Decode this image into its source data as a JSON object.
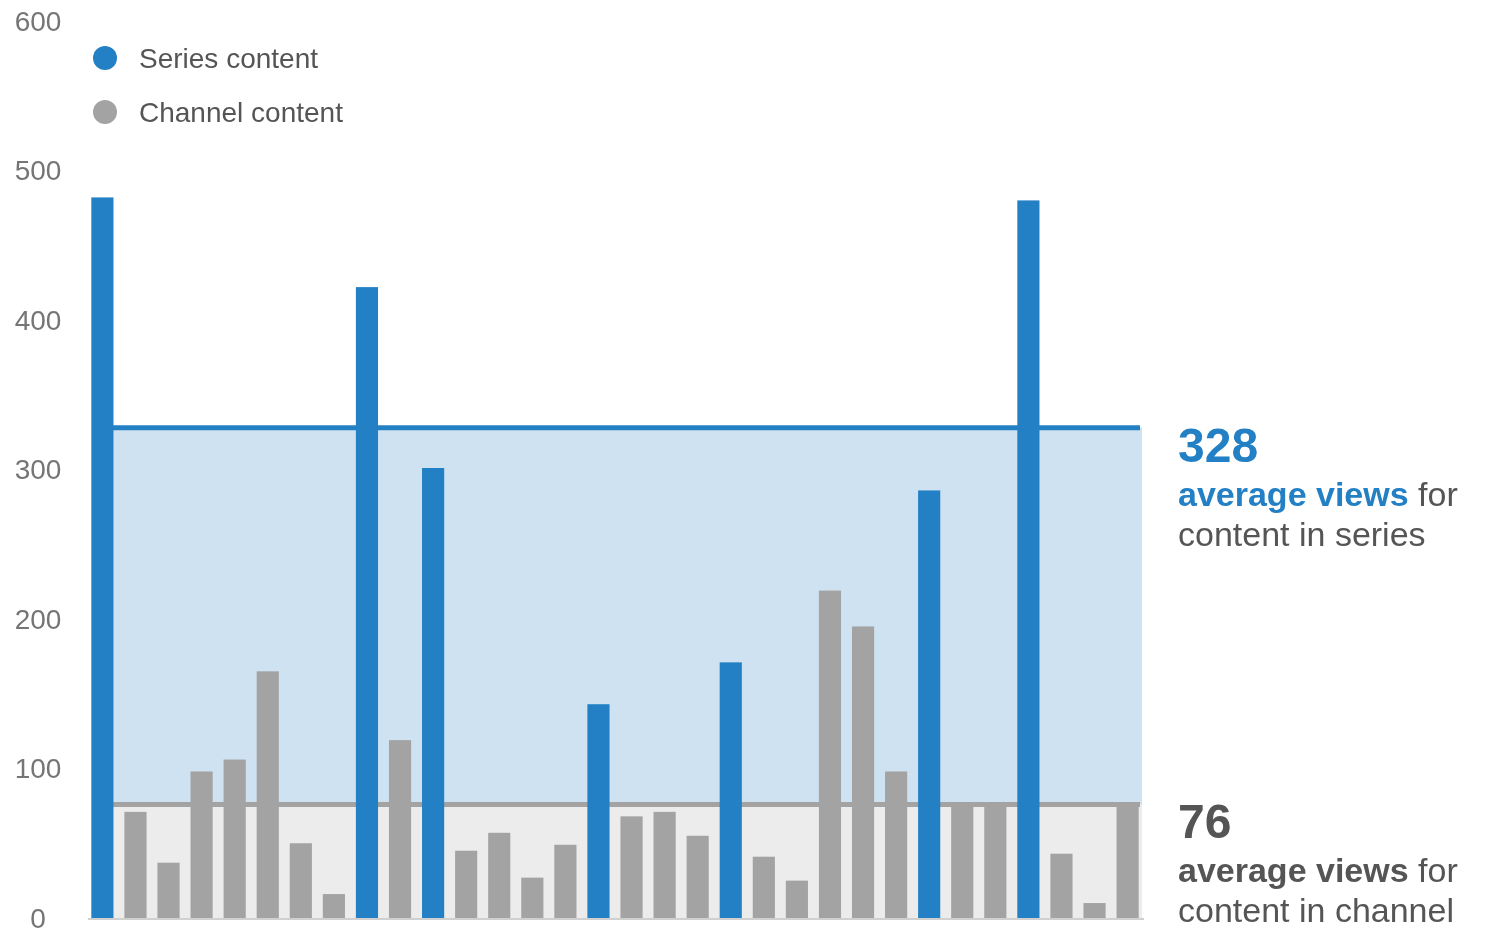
{
  "chart_data": {
    "type": "bar",
    "annotations": [
      "328",
      "76"
    ],
    "categories": [
      null,
      null,
      null,
      null,
      null,
      null,
      null,
      null,
      null,
      null,
      null,
      null,
      null,
      null,
      null,
      null,
      null,
      null,
      null,
      null,
      null,
      null,
      null,
      null,
      null,
      null,
      null,
      null,
      null,
      null,
      null,
      null
    ],
    "series": [
      {
        "name": "Series content",
        "color": "#2380c4",
        "values": [
          482,
          null,
          null,
          null,
          null,
          null,
          null,
          null,
          422,
          null,
          301,
          null,
          null,
          null,
          null,
          143,
          null,
          null,
          null,
          171,
          null,
          null,
          null,
          null,
          null,
          286,
          null,
          null,
          480,
          null,
          null,
          null
        ]
      },
      {
        "name": "Channel content",
        "color": "#a3a3a3",
        "values": [
          null,
          71,
          37,
          98,
          106,
          165,
          50,
          16,
          null,
          119,
          null,
          45,
          57,
          27,
          49,
          null,
          68,
          71,
          55,
          null,
          41,
          25,
          219,
          195,
          98,
          null,
          75,
          75,
          null,
          43,
          10,
          75
        ]
      }
    ],
    "ylim": [
      0,
      600
    ],
    "yticks": [
      0,
      100,
      200,
      300,
      400,
      500,
      600
    ],
    "grid": false,
    "legend": "top left",
    "marker": "circle",
    "bands": [
      {
        "axis": "y",
        "from": 0,
        "to": 328,
        "color": "#cfe2f1"
      },
      {
        "axis": "y",
        "from": 0,
        "to": 76,
        "color": "#ececec"
      }
    ],
    "ref_lines": [
      {
        "axis": "y",
        "value": 328,
        "label": "average views for content in series",
        "color": "#2380c4"
      },
      {
        "axis": "y",
        "value": 76,
        "label": "average views for content in channel",
        "color": "#a3a3a3"
      }
    ]
  }
}
